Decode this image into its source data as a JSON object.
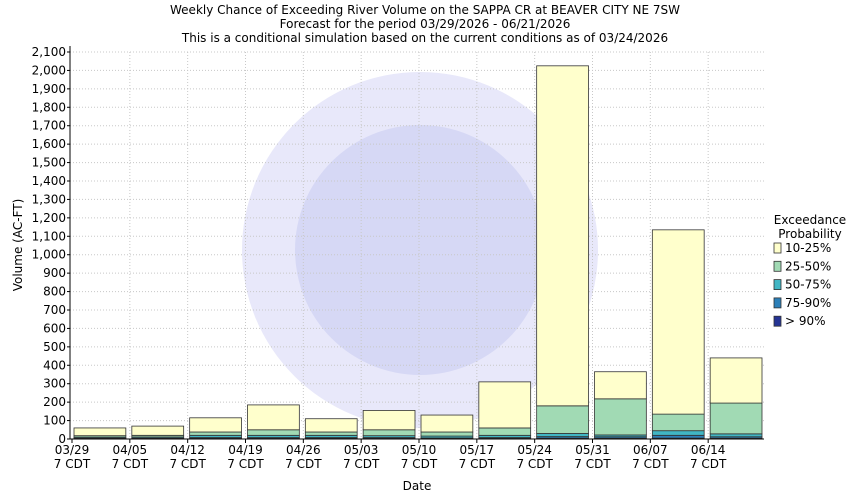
{
  "chart_data": {
    "type": "stacked_bar",
    "title": "Weekly Chance of Exceeding River Volume on the SAPPA CR at BEAVER CITY NE 7SW",
    "subtitles": [
      "Forecast for the period 03/29/2026 - 06/21/2026",
      "This is a conditional simulation based on the current conditions as of 03/24/2026"
    ],
    "x_label": "Date",
    "y_label": "Volume (AC-FT)",
    "legend_title": [
      "Exceedance",
      "Probability"
    ],
    "legend": "right",
    "categories": [
      [
        "03/29",
        "7 CDT"
      ],
      [
        "04/05",
        "7 CDT"
      ],
      [
        "04/12",
        "7 CDT"
      ],
      [
        "04/19",
        "7 CDT"
      ],
      [
        "04/26",
        "7 CDT"
      ],
      [
        "05/03",
        "7 CDT"
      ],
      [
        "05/10",
        "7 CDT"
      ],
      [
        "05/17",
        "7 CDT"
      ],
      [
        "05/24",
        "7 CDT"
      ],
      [
        "05/31",
        "7 CDT"
      ],
      [
        "06/07",
        "7 CDT"
      ],
      [
        "06/14",
        "7 CDT"
      ]
    ],
    "series": [
      {
        "name": "10-25%",
        "color": "#ffffcc",
        "values": [
          42,
          50,
          77,
          135,
          72,
          105,
          92,
          250,
          1845,
          147,
          1000,
          245
        ]
      },
      {
        "name": "25-50%",
        "color": "#a1dab4",
        "values": [
          8,
          9,
          18,
          30,
          18,
          32,
          22,
          40,
          150,
          196,
          90,
          167
        ]
      },
      {
        "name": "50-75%",
        "color": "#41b6c4",
        "values": [
          5,
          6,
          12,
          12,
          12,
          10,
          10,
          12,
          17,
          10,
          25,
          16
        ]
      },
      {
        "name": "75-90%",
        "color": "#2c7fb8",
        "values": [
          3,
          3,
          5,
          5,
          5,
          5,
          4,
          5,
          8,
          8,
          15,
          8
        ]
      },
      {
        "name": "> 90%",
        "color": "#253494",
        "values": [
          2,
          2,
          3,
          3,
          3,
          3,
          2,
          3,
          5,
          4,
          5,
          4
        ]
      }
    ],
    "ylim": [
      0,
      2100
    ],
    "yticks": [
      0,
      100,
      200,
      300,
      400,
      500,
      600,
      700,
      800,
      900,
      {
        "value": 1000,
        "label": "1,000"
      },
      {
        "value": 1100,
        "label": "1,100"
      },
      {
        "value": 1200,
        "label": "1,200"
      },
      {
        "value": 1300,
        "label": "1,300"
      },
      {
        "value": 1400,
        "label": "1,400"
      },
      {
        "value": 1500,
        "label": "1,500"
      },
      {
        "value": 1600,
        "label": "1,600"
      },
      {
        "value": 1700,
        "label": "1,700"
      },
      {
        "value": 1800,
        "label": "1,800"
      },
      {
        "value": 1900,
        "label": "1,900"
      },
      {
        "value": 2000,
        "label": "2,000"
      },
      {
        "value": 2100,
        "label": "2,100"
      }
    ],
    "grid": true
  }
}
